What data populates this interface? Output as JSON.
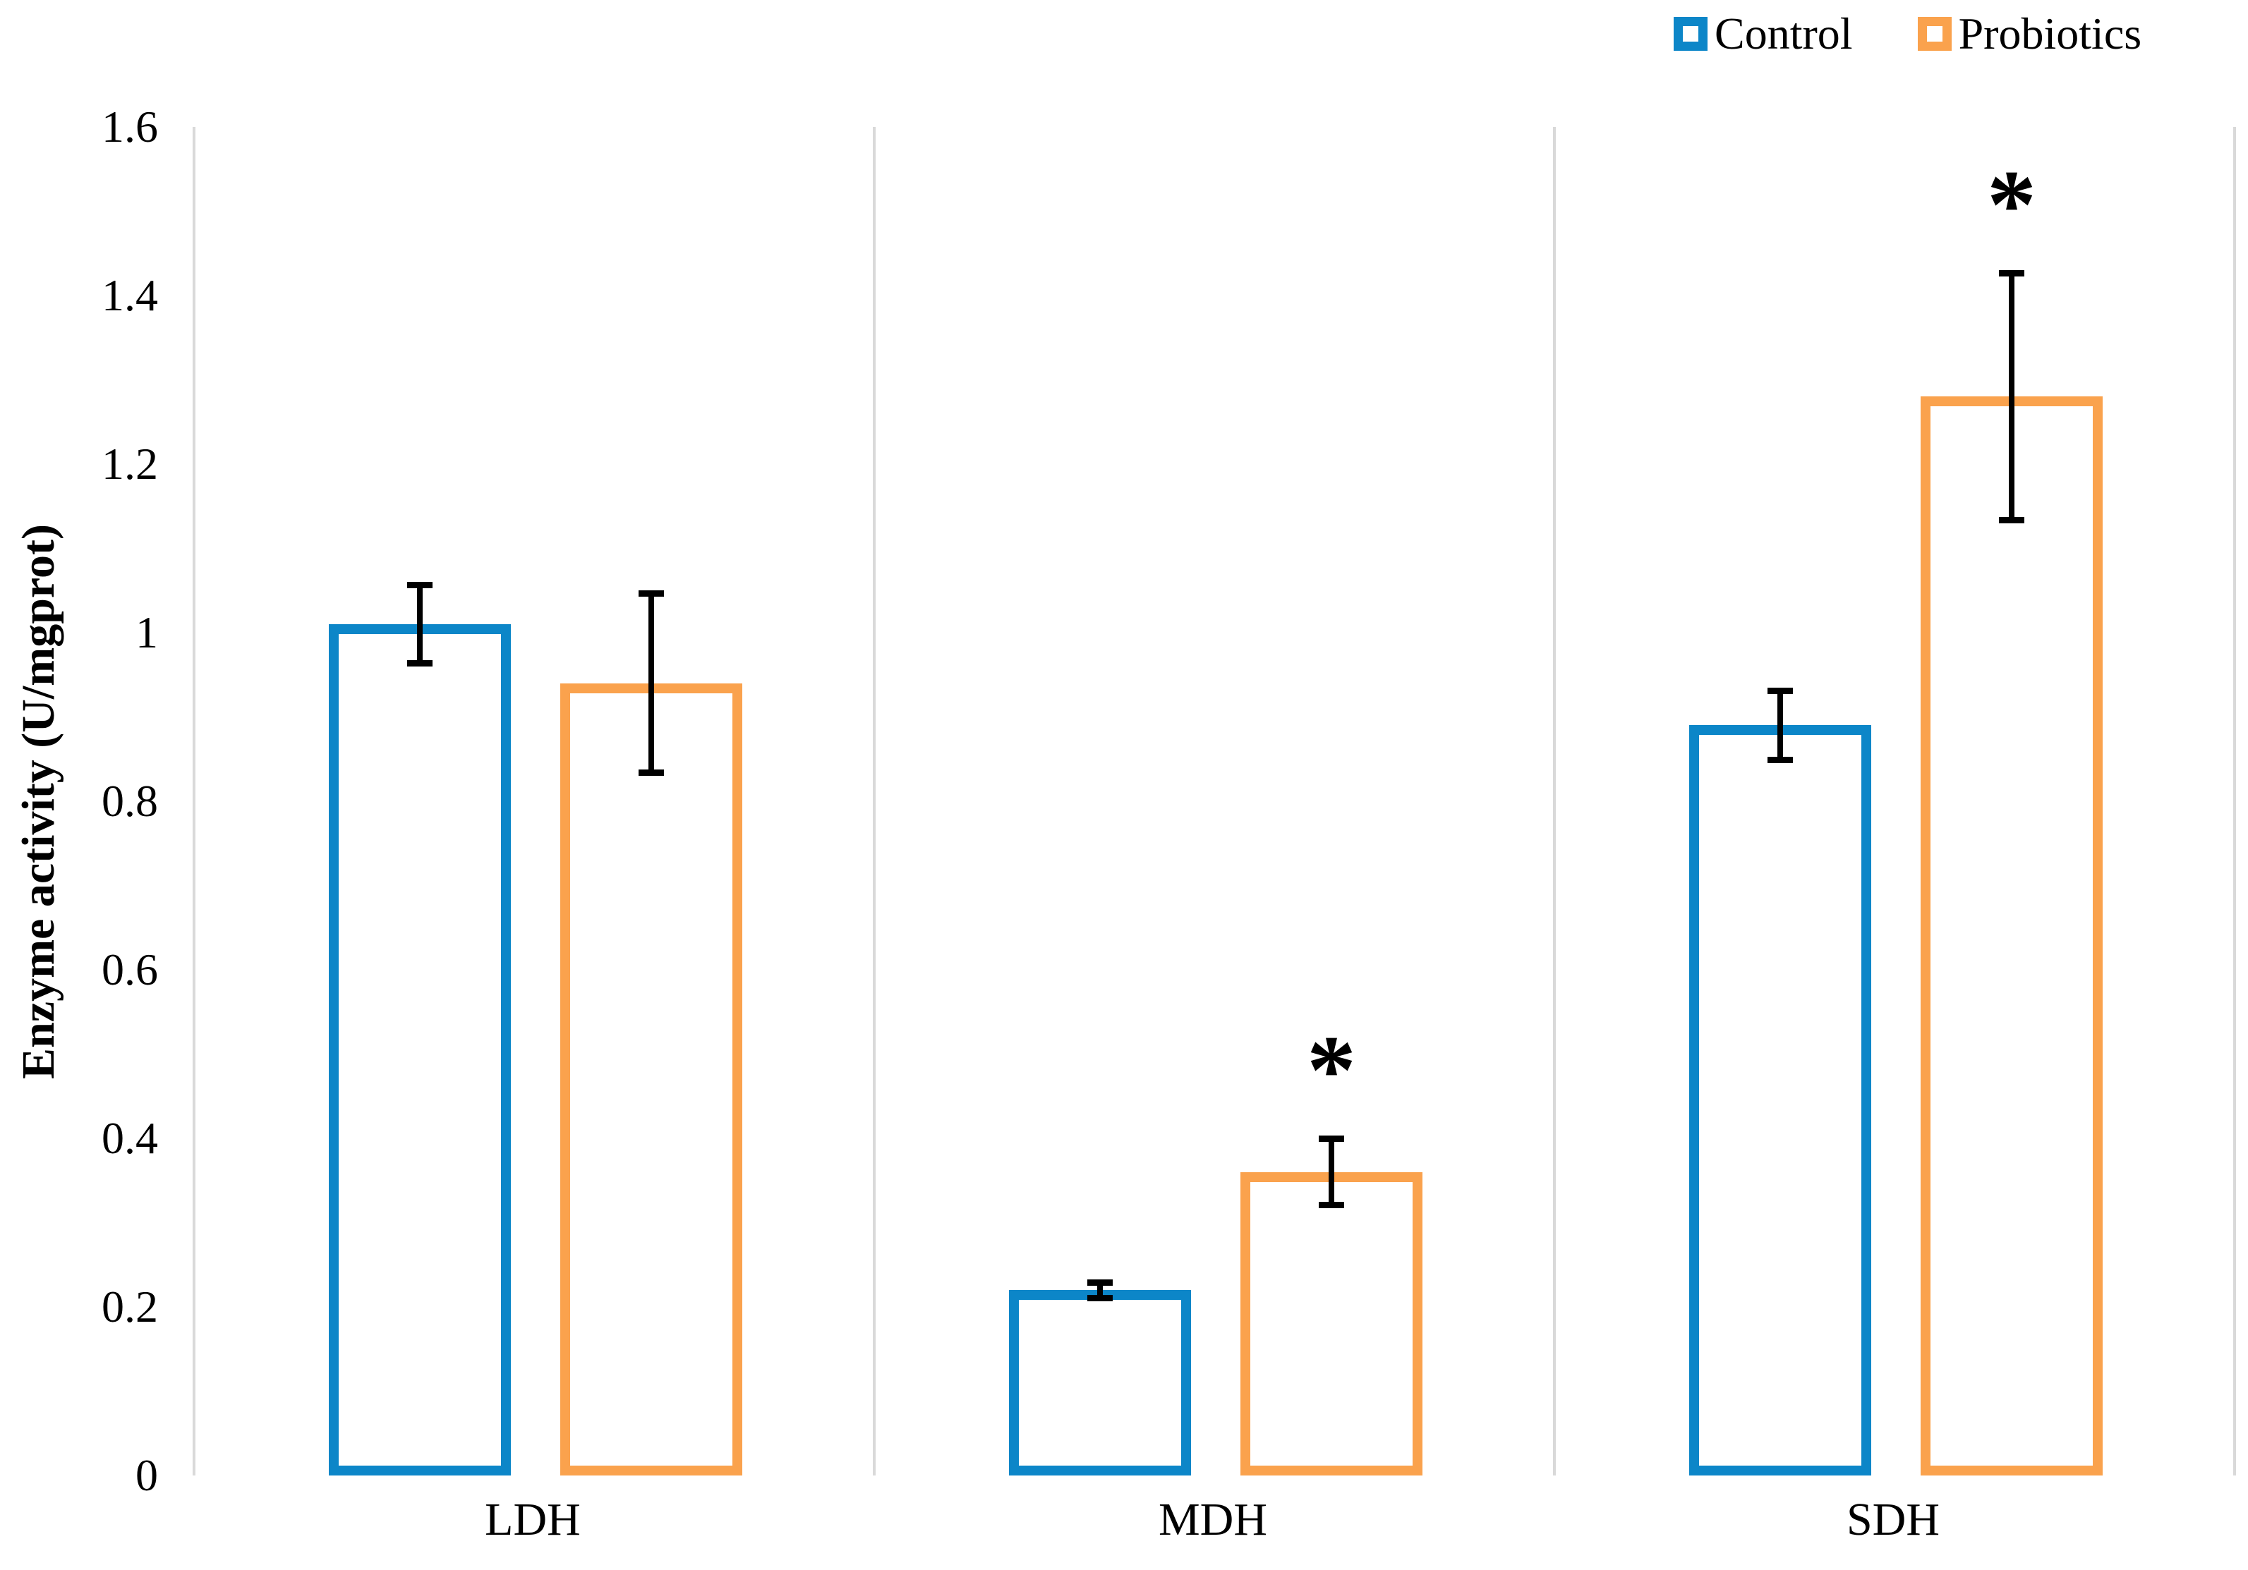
{
  "figure": {
    "background": "#ffffff",
    "axis_line_color": "#d9d9d9",
    "text_color": "#000000"
  },
  "legend": {
    "position": "top-right",
    "items": [
      {
        "label": "Control",
        "color": "#0c86c8"
      },
      {
        "label": "Probiotics",
        "color": "#faa24d"
      }
    ]
  },
  "chart_data": {
    "type": "bar",
    "title": "",
    "xlabel": "",
    "ylabel": "Enzyme activity (U/mgprot)",
    "categories": [
      "LDH",
      "MDH",
      "SDH"
    ],
    "series": [
      {
        "name": "Control",
        "color": "#0c86c8",
        "values": [
          1.01,
          0.22,
          0.89
        ],
        "errors": [
          0.05,
          0.013,
          0.045
        ],
        "significant": [
          false,
          false,
          false
        ]
      },
      {
        "name": "Probiotics",
        "color": "#faa24d",
        "values": [
          0.94,
          0.36,
          1.28
        ],
        "errors": [
          0.11,
          0.043,
          0.15
        ],
        "significant": [
          false,
          true,
          true
        ]
      }
    ],
    "ylim": [
      0,
      1.6
    ],
    "yticks": [
      0,
      0.2,
      0.4,
      0.6,
      0.8,
      1,
      1.2,
      1.4,
      1.6
    ],
    "ytick_labels": [
      "0",
      "0.2",
      "0.4",
      "0.6",
      "0.8",
      "1",
      "1.2",
      "1.4",
      "1.6"
    ],
    "significance_marker": "*",
    "bar_style": "hollow-outline",
    "error_bars": true,
    "grid": "vertical-panel-separators",
    "legend_position": "top-right"
  }
}
